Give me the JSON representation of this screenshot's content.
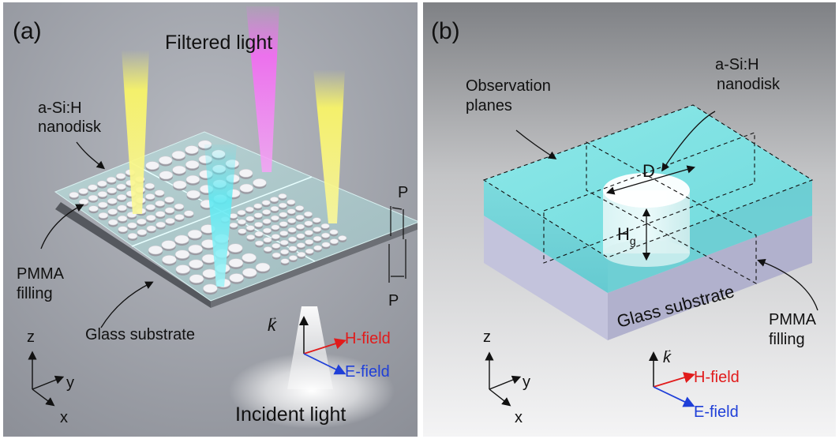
{
  "panel_a": {
    "tag": "(a)",
    "filtered_light": "Filtered light",
    "nanodisk_line1": "a-Si:H",
    "nanodisk_line2": "nanodisk",
    "pmma_line1": "PMMA",
    "pmma_line2": "filling",
    "glass": "Glass substrate",
    "period_top": "P",
    "period_bottom": "P",
    "k_symbol": "k",
    "h_field": "H-field",
    "e_field": "E-field",
    "incident": "Incident light",
    "axis_z": "z",
    "axis_y": "y",
    "axis_x": "x"
  },
  "panel_b": {
    "tag": "(b)",
    "obs_line1": "Observation",
    "obs_line2": "planes",
    "nanodisk_line1": "a-Si:H",
    "nanodisk_line2": "nanodisk",
    "diameter": "D",
    "height_main": "H",
    "height_sub": "g",
    "glass": "Glass substrate",
    "pmma_line1": "PMMA",
    "pmma_line2": "filling",
    "k_symbol": "k",
    "h_field": "H-field",
    "e_field": "E-field",
    "axis_z": "z",
    "axis_y": "y",
    "axis_x": "x"
  },
  "colors": {
    "h_field": "#e11b1b",
    "e_field": "#1f3fd8",
    "pmma": "#7fe6e6",
    "glass": "#b6b7d3",
    "beam_yellow": "#f6f36a",
    "beam_pink": "#f06ef0",
    "beam_cyan": "#5fe9f2"
  }
}
